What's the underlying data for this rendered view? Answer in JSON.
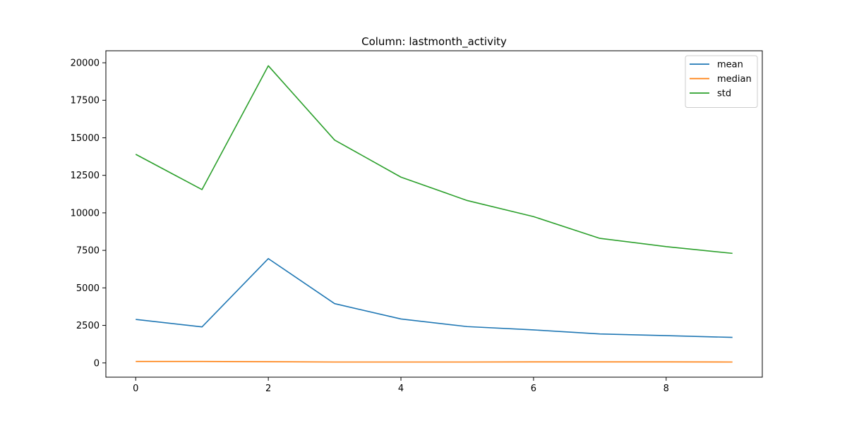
{
  "chart_data": {
    "type": "line",
    "title": "Column: lastmonth_activity",
    "xlabel": "",
    "ylabel": "",
    "x": [
      0,
      1,
      2,
      3,
      4,
      5,
      6,
      7,
      8,
      9
    ],
    "xlim": [
      -0.45,
      9.45
    ],
    "ylim": [
      -950,
      20800
    ],
    "x_ticks": [
      0,
      2,
      4,
      6,
      8
    ],
    "y_ticks": [
      0,
      2500,
      5000,
      7500,
      10000,
      12500,
      15000,
      17500,
      20000
    ],
    "grid": false,
    "legend_position": "top-right",
    "series": [
      {
        "name": "mean",
        "color": "#1f77b4",
        "values": [
          2900,
          2400,
          6950,
          3950,
          2930,
          2420,
          2200,
          1930,
          1820,
          1700
        ]
      },
      {
        "name": "median",
        "color": "#ff7f0e",
        "values": [
          100,
          100,
          80,
          60,
          60,
          60,
          70,
          70,
          70,
          60
        ]
      },
      {
        "name": "std",
        "color": "#2ca02c",
        "values": [
          13900,
          11550,
          19800,
          14850,
          12380,
          10820,
          9750,
          8300,
          7750,
          7300
        ]
      }
    ]
  }
}
